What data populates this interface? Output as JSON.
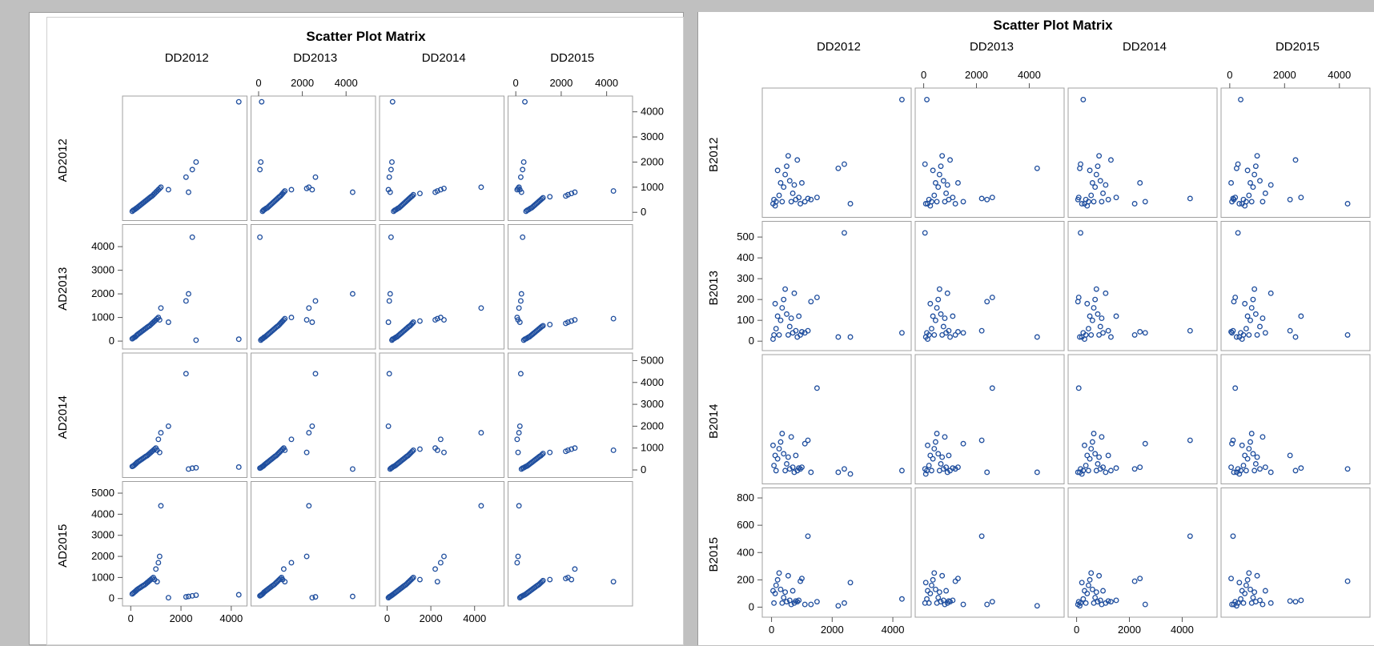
{
  "chart_data": [
    {
      "type": "scatter",
      "title": "Scatter Plot Matrix",
      "matrix": "lower triangle shown as full matrix",
      "columns": [
        "DD2012",
        "DD2013",
        "DD2014",
        "DD2015"
      ],
      "rows": [
        "AD2012",
        "AD2013",
        "AD2014",
        "AD2015"
      ],
      "column_ticks": {
        "DD2012": [
          0,
          2000,
          4000
        ],
        "DD2013": [
          0,
          2000,
          4000
        ],
        "DD2014": [
          0,
          2000,
          4000
        ],
        "DD2015": [
          0,
          2000,
          4000
        ]
      },
      "column_ranges": {
        "DD2012": [
          -200,
          4500
        ],
        "DD2013": [
          -200,
          5200
        ],
        "DD2014": [
          -200,
          5200
        ],
        "DD2015": [
          -200,
          5000
        ]
      },
      "row_ticks": {
        "AD2012": [
          0,
          1000,
          2000,
          3000,
          4000
        ],
        "AD2013": [
          0,
          1000,
          2000,
          3000,
          4000
        ],
        "AD2014": [
          0,
          1000,
          2000,
          3000,
          4000,
          5000
        ],
        "AD2015": [
          0,
          1000,
          2000,
          3000,
          4000,
          5000
        ]
      },
      "row_ranges": {
        "AD2012": [
          -200,
          4500
        ],
        "AD2013": [
          -200,
          4800
        ],
        "AD2014": [
          -200,
          5200
        ],
        "AD2015": [
          -200,
          5400
        ]
      },
      "marker_color": "#1f4e9e",
      "grid": false,
      "x_values": [
        60,
        100,
        140,
        180,
        220,
        250,
        300,
        350,
        400,
        450,
        500,
        550,
        600,
        650,
        700,
        750,
        800,
        850,
        900,
        950,
        1000,
        1050,
        1100,
        1150,
        1200,
        1500,
        2200,
        2300,
        2450,
        2600,
        4300
      ],
      "y_values": [
        40,
        80,
        100,
        130,
        160,
        180,
        220,
        260,
        300,
        340,
        380,
        420,
        460,
        500,
        540,
        580,
        620,
        650,
        700,
        750,
        800,
        850,
        900,
        950,
        1000,
        900,
        1400,
        800,
        1700,
        2000,
        4400
      ]
    },
    {
      "type": "scatter",
      "title": "Scatter Plot Matrix",
      "columns": [
        "DD2012",
        "DD2013",
        "DD2014",
        "DD2015"
      ],
      "rows": [
        "B2012",
        "B2013",
        "B2014",
        "B2015"
      ],
      "column_ticks": {
        "DD2012": [
          0,
          2000,
          4000
        ],
        "DD2013": [
          0,
          2000,
          4000
        ],
        "DD2014": [
          0,
          2000,
          4000
        ],
        "DD2015": [
          0,
          2000,
          4000
        ]
      },
      "column_ranges": {
        "DD2012": [
          -200,
          4500
        ],
        "DD2013": [
          -200,
          5200
        ],
        "DD2014": [
          -200,
          5200
        ],
        "DD2015": [
          -200,
          5000
        ]
      },
      "row_ticks": {
        "B2012": [],
        "B2013": [
          0,
          100,
          200,
          300,
          400,
          500
        ],
        "B2014": [],
        "B2015": [
          0,
          200,
          400,
          600,
          800
        ]
      },
      "row_ranges": {
        "B2012": [
          -30,
          560
        ],
        "B2013": [
          -30,
          560
        ],
        "B2014": [
          -30,
          700
        ],
        "B2015": [
          -50,
          850
        ]
      },
      "marker_color": "#1f4e9e",
      "grid": false,
      "x_values": [
        50,
        80,
        120,
        150,
        200,
        250,
        300,
        350,
        400,
        450,
        500,
        550,
        600,
        650,
        700,
        750,
        800,
        850,
        900,
        950,
        1000,
        1100,
        1200,
        1300,
        1500,
        2200,
        2400,
        2600,
        4300
      ],
      "y_values": [
        20,
        40,
        10,
        30,
        180,
        60,
        120,
        30,
        100,
        160,
        200,
        250,
        130,
        30,
        70,
        110,
        40,
        230,
        50,
        20,
        120,
        30,
        45,
        40,
        50,
        190,
        210,
        20,
        520
      ]
    }
  ]
}
